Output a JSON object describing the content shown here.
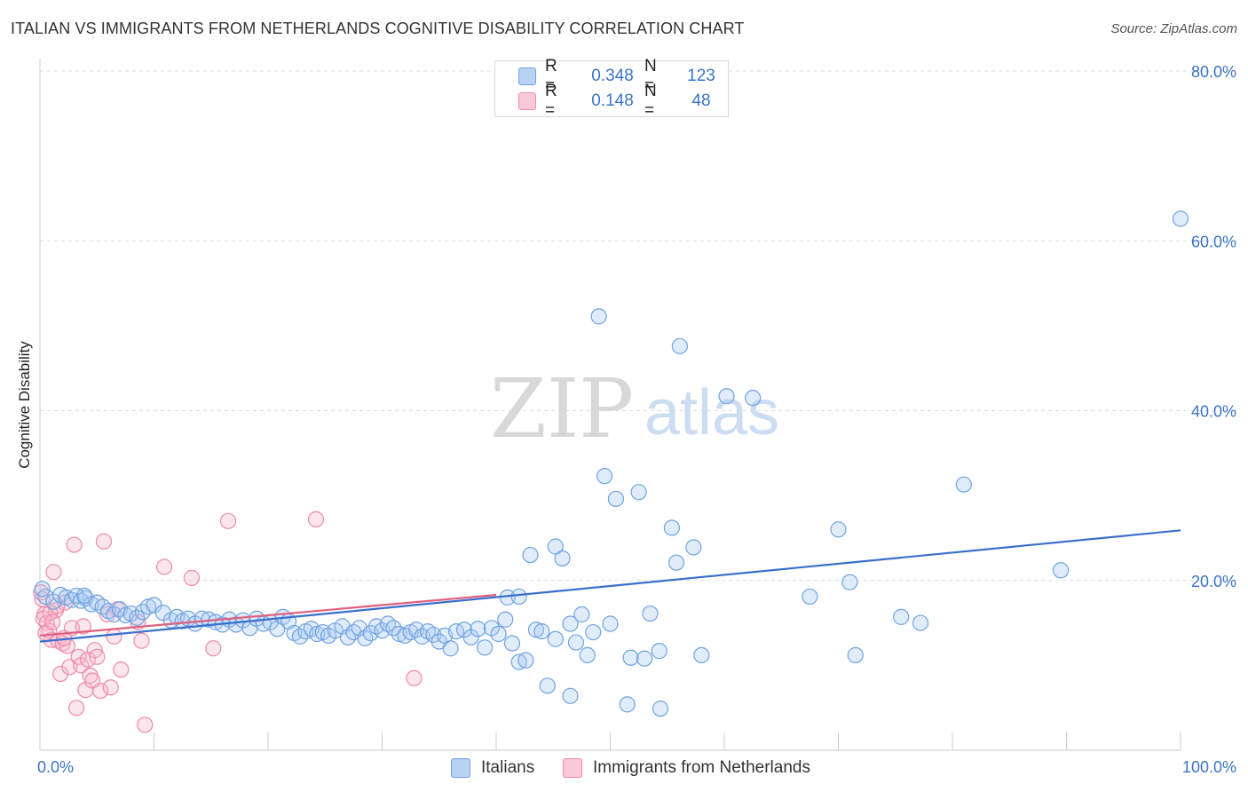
{
  "header": {
    "title": "ITALIAN VS IMMIGRANTS FROM NETHERLANDS COGNITIVE DISABILITY CORRELATION CHART",
    "source": "Source: ZipAtlas.com"
  },
  "watermark": {
    "part1": "ZIP",
    "part2": "atlas"
  },
  "legend_top": {
    "rows": [
      {
        "r_label": "R =",
        "r_value": "0.348",
        "n_label": "N =",
        "n_value": "123",
        "color": "#a8c8f0"
      },
      {
        "r_label": "R =",
        "r_value": "0.148",
        "n_label": "N =",
        "n_value": "48",
        "color": "#f7b8cb"
      }
    ]
  },
  "legend_bottom": {
    "items": [
      {
        "label": "Italians",
        "color": "#a8c8f0"
      },
      {
        "label": "Immigrants from Netherlands",
        "color": "#f7b8cb"
      }
    ]
  },
  "chart_data": {
    "type": "scatter",
    "title": "ITALIAN VS IMMIGRANTS FROM NETHERLANDS COGNITIVE DISABILITY CORRELATION CHART",
    "xlabel": "",
    "ylabel": "Cognitive Disability",
    "xlim": [
      0,
      100
    ],
    "ylim": [
      0,
      80
    ],
    "x_tick_labels": [
      "0.0%",
      "100.0%"
    ],
    "y_ticks": [
      20,
      40,
      60,
      80
    ],
    "y_tick_labels": [
      "20.0%",
      "40.0%",
      "60.0%",
      "80.0%"
    ],
    "grid": true,
    "legend_position": "top-center",
    "colors": {
      "italians": "#6fa3e0",
      "netherlands": "#ee8aaa",
      "italians_line": "#3a6fcc",
      "netherlands_line": "#e0607f",
      "tick_label": "#3a74c8"
    },
    "series": [
      {
        "name": "Italians",
        "trend": {
          "x": [
            0,
            100
          ],
          "y": [
            12.8,
            25.9
          ]
        },
        "points": [
          [
            0.5,
            18.1
          ],
          [
            1.2,
            17.5
          ],
          [
            1.8,
            18.3
          ],
          [
            2.3,
            18.0
          ],
          [
            2.8,
            17.7
          ],
          [
            3.2,
            18.2
          ],
          [
            3.6,
            17.6
          ],
          [
            4.0,
            17.9
          ],
          [
            4.5,
            17.2
          ],
          [
            5.0,
            17.4
          ],
          [
            5.5,
            16.9
          ],
          [
            6.0,
            16.4
          ],
          [
            6.5,
            16.0
          ],
          [
            7.0,
            16.6
          ],
          [
            7.5,
            15.9
          ],
          [
            8.0,
            16.1
          ],
          [
            8.5,
            15.6
          ],
          [
            9.0,
            16.3
          ],
          [
            9.5,
            16.9
          ],
          [
            10.0,
            17.1
          ],
          [
            10.8,
            16.2
          ],
          [
            11.5,
            15.3
          ],
          [
            12.0,
            15.7
          ],
          [
            12.5,
            15.2
          ],
          [
            13.0,
            15.5
          ],
          [
            13.6,
            14.9
          ],
          [
            14.2,
            15.5
          ],
          [
            14.8,
            15.4
          ],
          [
            15.4,
            15.1
          ],
          [
            16.0,
            14.8
          ],
          [
            16.6,
            15.4
          ],
          [
            17.2,
            14.8
          ],
          [
            17.8,
            15.3
          ],
          [
            18.4,
            14.4
          ],
          [
            19.0,
            15.5
          ],
          [
            19.6,
            14.9
          ],
          [
            20.2,
            15.1
          ],
          [
            20.8,
            14.3
          ],
          [
            21.3,
            15.7
          ],
          [
            21.8,
            15.2
          ],
          [
            22.3,
            13.8
          ],
          [
            22.8,
            13.4
          ],
          [
            23.3,
            14.0
          ],
          [
            23.8,
            14.3
          ],
          [
            24.3,
            13.7
          ],
          [
            24.8,
            13.9
          ],
          [
            25.3,
            13.5
          ],
          [
            25.9,
            14.1
          ],
          [
            26.5,
            14.6
          ],
          [
            27.0,
            13.3
          ],
          [
            27.5,
            13.9
          ],
          [
            28.0,
            14.4
          ],
          [
            28.5,
            13.2
          ],
          [
            29.0,
            13.8
          ],
          [
            29.5,
            14.6
          ],
          [
            30.0,
            14.1
          ],
          [
            30.5,
            14.9
          ],
          [
            31.0,
            14.4
          ],
          [
            31.5,
            13.7
          ],
          [
            32.0,
            13.5
          ],
          [
            32.5,
            13.9
          ],
          [
            33.0,
            14.2
          ],
          [
            33.5,
            13.4
          ],
          [
            34.0,
            14.0
          ],
          [
            34.5,
            13.6
          ],
          [
            35.0,
            12.8
          ],
          [
            35.5,
            13.5
          ],
          [
            36.0,
            12.0
          ],
          [
            36.5,
            14.0
          ],
          [
            37.2,
            14.2
          ],
          [
            37.8,
            13.3
          ],
          [
            38.4,
            14.3
          ],
          [
            39.0,
            12.1
          ],
          [
            39.6,
            14.4
          ],
          [
            40.2,
            13.7
          ],
          [
            40.8,
            15.4
          ],
          [
            41.4,
            12.6
          ],
          [
            42.0,
            10.4
          ],
          [
            42.6,
            10.6
          ],
          [
            41.0,
            18.0
          ],
          [
            42.0,
            18.1
          ],
          [
            43.0,
            23.0
          ],
          [
            43.5,
            14.2
          ],
          [
            44.0,
            14.0
          ],
          [
            44.5,
            7.6
          ],
          [
            45.2,
            13.1
          ],
          [
            45.8,
            22.6
          ],
          [
            45.2,
            24.0
          ],
          [
            46.5,
            14.9
          ],
          [
            47.0,
            12.7
          ],
          [
            46.5,
            6.4
          ],
          [
            47.5,
            16.0
          ],
          [
            48.0,
            11.2
          ],
          [
            48.5,
            13.9
          ],
          [
            49.0,
            51.1
          ],
          [
            49.5,
            32.3
          ],
          [
            50.5,
            29.6
          ],
          [
            50.0,
            14.9
          ],
          [
            51.5,
            5.4
          ],
          [
            51.8,
            10.9
          ],
          [
            52.5,
            30.4
          ],
          [
            53.0,
            10.8
          ],
          [
            53.5,
            16.1
          ],
          [
            54.3,
            11.7
          ],
          [
            54.4,
            4.9
          ],
          [
            55.4,
            26.2
          ],
          [
            55.8,
            22.1
          ],
          [
            56.1,
            47.6
          ],
          [
            57.3,
            23.9
          ],
          [
            58.0,
            11.2
          ],
          [
            60.2,
            41.7
          ],
          [
            62.5,
            41.5
          ],
          [
            67.5,
            18.1
          ],
          [
            70.0,
            26.0
          ],
          [
            71.0,
            19.8
          ],
          [
            71.5,
            11.2
          ],
          [
            75.5,
            15.7
          ],
          [
            77.2,
            15.0
          ],
          [
            81.0,
            31.3
          ],
          [
            89.5,
            21.2
          ],
          [
            100.0,
            62.6
          ],
          [
            0.2,
            19.0
          ],
          [
            3.9,
            18.2
          ]
        ]
      },
      {
        "name": "Immigrants from Netherlands",
        "trend": {
          "x": [
            0,
            40
          ],
          "y": [
            13.5,
            18.3
          ]
        },
        "points": [
          [
            0.2,
            17.8
          ],
          [
            0.4,
            16.0
          ],
          [
            0.6,
            15.0
          ],
          [
            0.8,
            14.1
          ],
          [
            1.0,
            13.0
          ],
          [
            1.2,
            21.0
          ],
          [
            1.4,
            16.5
          ],
          [
            1.6,
            12.9
          ],
          [
            1.8,
            9.0
          ],
          [
            2.0,
            12.6
          ],
          [
            2.2,
            17.4
          ],
          [
            2.4,
            12.3
          ],
          [
            2.6,
            9.8
          ],
          [
            2.8,
            14.4
          ],
          [
            3.0,
            24.2
          ],
          [
            3.2,
            5.0
          ],
          [
            3.4,
            11.0
          ],
          [
            3.6,
            10.0
          ],
          [
            3.8,
            14.6
          ],
          [
            4.0,
            7.1
          ],
          [
            4.2,
            10.7
          ],
          [
            4.4,
            8.8
          ],
          [
            4.6,
            8.2
          ],
          [
            4.8,
            11.8
          ],
          [
            5.0,
            11.0
          ],
          [
            5.3,
            7.0
          ],
          [
            5.6,
            24.6
          ],
          [
            5.9,
            16.0
          ],
          [
            6.2,
            7.4
          ],
          [
            6.5,
            13.4
          ],
          [
            6.8,
            16.6
          ],
          [
            7.1,
            9.5
          ],
          [
            8.6,
            15.1
          ],
          [
            8.9,
            12.9
          ],
          [
            9.2,
            3.0
          ],
          [
            10.9,
            21.6
          ],
          [
            13.3,
            20.3
          ],
          [
            15.2,
            12.0
          ],
          [
            16.5,
            27.0
          ],
          [
            24.2,
            27.2
          ],
          [
            32.8,
            8.5
          ],
          [
            0.1,
            18.6
          ],
          [
            0.3,
            15.5
          ],
          [
            0.5,
            13.8
          ],
          [
            0.9,
            16.2
          ],
          [
            1.5,
            17.0
          ],
          [
            2.1,
            13.2
          ],
          [
            1.1,
            15.1
          ]
        ]
      }
    ]
  }
}
